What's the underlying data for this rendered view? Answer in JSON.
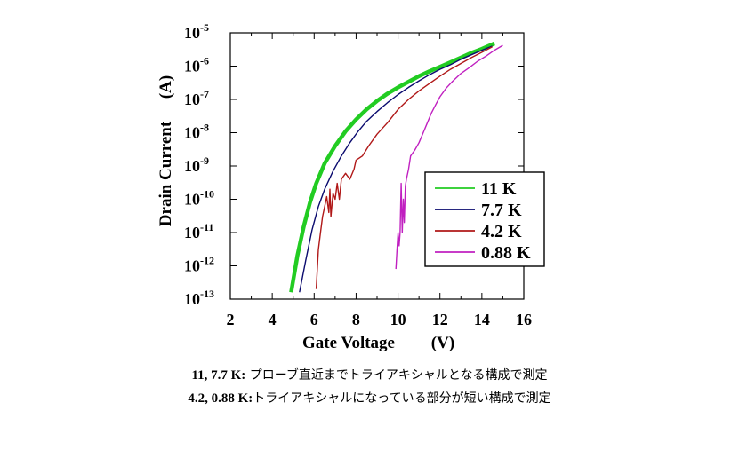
{
  "chart_data": {
    "type": "line",
    "xlabel": "Gate Voltage",
    "xunit": "(V)",
    "ylabel": "Drain Current",
    "yunit": "(A)",
    "xlim": [
      2,
      16
    ],
    "ylim": [
      1e-13,
      1e-05
    ],
    "yscale": "log",
    "x_ticks": [
      "2",
      "4",
      "6",
      "8",
      "10",
      "12",
      "14",
      "16"
    ],
    "y_ticks": [
      {
        "base": "10",
        "exp": "-5"
      },
      {
        "base": "10",
        "exp": "-6"
      },
      {
        "base": "10",
        "exp": "-7"
      },
      {
        "base": "10",
        "exp": "-8"
      },
      {
        "base": "10",
        "exp": "-9"
      },
      {
        "base": "10",
        "exp": "-10"
      },
      {
        "base": "10",
        "exp": "-11"
      },
      {
        "base": "10",
        "exp": "-12"
      },
      {
        "base": "10",
        "exp": "-13"
      }
    ],
    "legend_placement": "right",
    "series": [
      {
        "name": "11 K",
        "color": "#22cc22",
        "x": [
          4.9,
          5.2,
          5.5,
          5.8,
          6.1,
          6.5,
          7.0,
          7.5,
          8.0,
          8.5,
          9.0,
          9.5,
          10.0,
          10.5,
          11.0,
          11.5,
          12.0,
          12.5,
          13.0,
          13.5,
          14.0,
          14.6
        ],
        "y": [
          1.6e-13,
          2e-12,
          1.5e-11,
          8e-11,
          3e-10,
          1.2e-09,
          4e-09,
          1.1e-08,
          2.5e-08,
          5e-08,
          9e-08,
          1.5e-07,
          2.3e-07,
          3.4e-07,
          5e-07,
          7e-07,
          9.5e-07,
          1.3e-06,
          1.8e-06,
          2.5e-06,
          3.3e-06,
          4.8e-06
        ]
      },
      {
        "name": "7.7 K",
        "color": "#0a0a6e",
        "x": [
          5.3,
          5.6,
          5.9,
          6.2,
          6.5,
          6.9,
          7.3,
          7.7,
          8.1,
          8.5,
          9.0,
          9.5,
          10.0,
          10.5,
          11.0,
          11.5,
          12.0,
          12.5,
          13.0,
          13.5,
          14.0,
          14.5
        ],
        "y": [
          1.6e-13,
          1.5e-12,
          1.2e-11,
          6e-11,
          2e-10,
          7e-10,
          2e-09,
          5e-09,
          1.1e-08,
          2.2e-08,
          4.3e-08,
          8e-08,
          1.4e-07,
          2.3e-07,
          3.6e-07,
          5.5e-07,
          8e-07,
          1.1e-06,
          1.6e-06,
          2.2e-06,
          3e-06,
          4e-06
        ]
      },
      {
        "name": "4.2 K",
        "color": "#b01818",
        "x": [
          6.1,
          6.2,
          6.3,
          6.4,
          6.5,
          6.6,
          6.7,
          6.75,
          6.8,
          6.9,
          7.0,
          7.1,
          7.2,
          7.3,
          7.5,
          7.7,
          7.9,
          8.0,
          8.3,
          8.6,
          9.0,
          9.5,
          10.0,
          10.5,
          11.0,
          11.5,
          12.0,
          12.5,
          13.0,
          13.5,
          14.0,
          14.5
        ],
        "y": [
          2e-13,
          3e-12,
          1e-11,
          3e-11,
          6e-11,
          1.2e-10,
          4e-11,
          2e-10,
          3e-11,
          1.5e-10,
          1e-10,
          3e-10,
          1e-10,
          4e-10,
          6e-10,
          4e-10,
          8e-10,
          1.5e-09,
          2e-09,
          4e-09,
          9e-09,
          2e-08,
          5e-08,
          1e-07,
          1.8e-07,
          3e-07,
          5e-07,
          8e-07,
          1.2e-06,
          1.8e-06,
          2.6e-06,
          3.8e-06
        ]
      },
      {
        "name": "0.88 K",
        "color": "#c020c0",
        "x": [
          9.9,
          9.95,
          10.0,
          10.05,
          10.1,
          10.15,
          10.2,
          10.25,
          10.3,
          10.35,
          10.4,
          10.5,
          10.6,
          10.8,
          11.0,
          11.2,
          11.4,
          11.6,
          11.8,
          12.0,
          12.3,
          12.6,
          13.0,
          13.4,
          13.8,
          14.2,
          14.6,
          15.0
        ],
        "y": [
          8e-13,
          3e-12,
          1e-11,
          4e-12,
          1e-11,
          3e-10,
          1e-11,
          1e-10,
          2e-11,
          2.5e-10,
          4e-10,
          8e-10,
          2e-09,
          3e-09,
          5e-09,
          1e-08,
          2e-08,
          4e-08,
          7e-08,
          1.2e-07,
          2.2e-07,
          3.5e-07,
          6e-07,
          9e-07,
          1.4e-06,
          2e-06,
          3e-06,
          4.2e-06
        ]
      }
    ]
  },
  "captions": {
    "line1_bold": "11, 7.7 K:",
    "line1_text": " プローブ直近までトライアキシャルとなる構成で測定",
    "line2_bold": "4.2, 0.88 K:",
    "line2_text": "トライアキシャルになっている部分が短い構成で測定"
  }
}
